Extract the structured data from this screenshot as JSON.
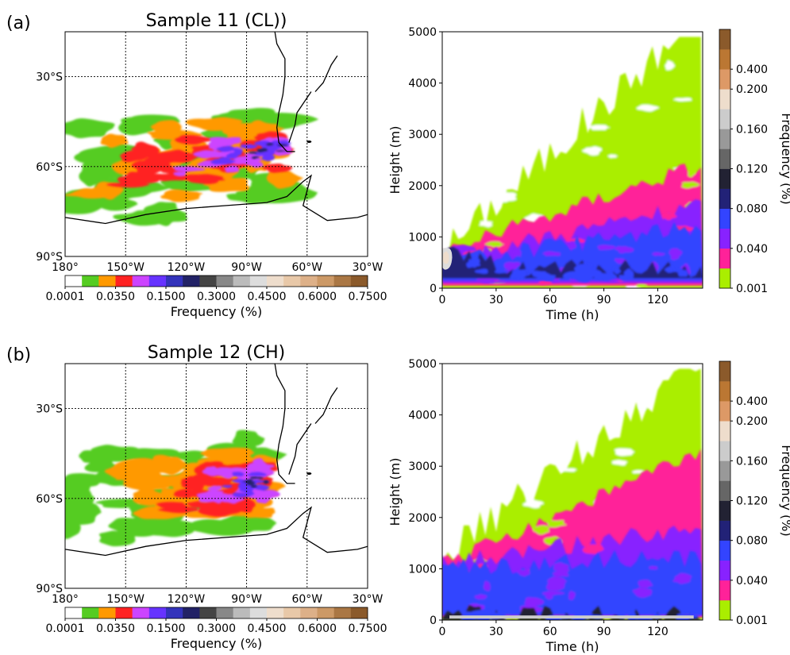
{
  "panels": [
    {
      "letter": "(a)",
      "map": {
        "title": "Sample 11 (CL))",
        "lat_ticks": [
          "30°S",
          "60°S",
          "90°S"
        ],
        "lon_ticks": [
          "180°",
          "150°W",
          "120°W",
          "90°W",
          "60°W",
          "30°W"
        ],
        "colorbar_label": "Frequency (%)",
        "colorbar_ticks": [
          "0.0001",
          "0.0350",
          "0.1500",
          "0.3000",
          "0.4500",
          "0.6000",
          "0.7500"
        ]
      },
      "height": {
        "xlabel": "Time (h)",
        "ylabel": "Height (m)",
        "colorbar_label": "Frequency (%)",
        "colorbar_ticks": [
          "0.001",
          "0.040",
          "0.080",
          "0.120",
          "0.160",
          "0.200",
          "0.400"
        ]
      }
    },
    {
      "letter": "(b)",
      "map": {
        "title": "Sample 12 (CH)",
        "lat_ticks": [
          "30°S",
          "60°S",
          "90°S"
        ],
        "lon_ticks": [
          "180°",
          "150°W",
          "120°W",
          "90°W",
          "60°W",
          "30°W"
        ],
        "colorbar_label": "Frequency (%)",
        "colorbar_ticks": [
          "0.0001",
          "0.0350",
          "0.1500",
          "0.3000",
          "0.4500",
          "0.6000",
          "0.7500"
        ]
      },
      "height": {
        "xlabel": "Time (h)",
        "ylabel": "Height (m)",
        "colorbar_label": "Frequency (%)",
        "colorbar_ticks": [
          "0.001",
          "0.040",
          "0.080",
          "0.120",
          "0.160",
          "0.200",
          "0.400"
        ]
      }
    }
  ],
  "chart_data": [
    {
      "type": "heatmap",
      "title": "Sample 11 (CL))",
      "xlabel": "",
      "ylabel": "",
      "x_range_deg": [
        -180,
        -30
      ],
      "y_range_deg": [
        -90,
        -15
      ],
      "x_ticks": [
        "180°",
        "150°W",
        "120°W",
        "90°W",
        "60°W",
        "30°W"
      ],
      "y_ticks": [
        "30°S",
        "60°S",
        "90°S"
      ],
      "grid": true,
      "colorbar": {
        "label": "Frequency (%)",
        "levels": [
          "0.0001",
          "0.0350",
          "0.1500",
          "0.3000",
          "0.4500",
          "0.6000",
          "0.7500"
        ]
      }
    },
    {
      "type": "heatmap",
      "title": "",
      "xlabel": "Time (h)",
      "ylabel": "Height (m)",
      "xlim": [
        0,
        145
      ],
      "ylim": [
        0,
        5000
      ],
      "x_ticks": [
        0,
        30,
        60,
        90,
        120
      ],
      "y_ticks": [
        0,
        1000,
        2000,
        3000,
        4000,
        5000
      ],
      "colorbar": {
        "label": "Frequency (%)",
        "levels": [
          "0.001",
          "0.040",
          "0.080",
          "0.120",
          "0.160",
          "0.200",
          "0.400"
        ]
      }
    },
    {
      "type": "heatmap",
      "title": "Sample 12 (CH)",
      "xlabel": "",
      "ylabel": "",
      "x_range_deg": [
        -180,
        -30
      ],
      "y_range_deg": [
        -90,
        -15
      ],
      "x_ticks": [
        "180°",
        "150°W",
        "120°W",
        "90°W",
        "60°W",
        "30°W"
      ],
      "y_ticks": [
        "30°S",
        "60°S",
        "90°S"
      ],
      "grid": true,
      "colorbar": {
        "label": "Frequency (%)",
        "levels": [
          "0.0001",
          "0.0350",
          "0.1500",
          "0.3000",
          "0.4500",
          "0.6000",
          "0.7500"
        ]
      }
    },
    {
      "type": "heatmap",
      "title": "",
      "xlabel": "Time (h)",
      "ylabel": "Height (m)",
      "xlim": [
        0,
        145
      ],
      "ylim": [
        0,
        5000
      ],
      "x_ticks": [
        0,
        30,
        60,
        90,
        120
      ],
      "y_ticks": [
        0,
        1000,
        2000,
        3000,
        4000,
        5000
      ],
      "colorbar": {
        "label": "Frequency (%)",
        "levels": [
          "0.001",
          "0.040",
          "0.080",
          "0.120",
          "0.160",
          "0.200",
          "0.400"
        ]
      }
    }
  ],
  "colors": {
    "map_colorbar": [
      "#ffffff",
      "#55cc22",
      "#ff9900",
      "#ff2222",
      "#cc44ff",
      "#6633ff",
      "#3333bb",
      "#222266",
      "#444444",
      "#888888",
      "#bbbbbb",
      "#dddddd",
      "#eeddcc",
      "#e8c8a8",
      "#ddb088",
      "#cc9966",
      "#aa7744",
      "#8b5a2b"
    ],
    "height_colorbar": [
      "#aaee00",
      "#ff2299",
      "#8822ff",
      "#3344ff",
      "#222277",
      "#222233",
      "#666666",
      "#999999",
      "#cccccc",
      "#eeddcc",
      "#dd9966",
      "#bb7733",
      "#8b5a2b"
    ],
    "coastline": "#000000",
    "gridline": "#000000"
  }
}
